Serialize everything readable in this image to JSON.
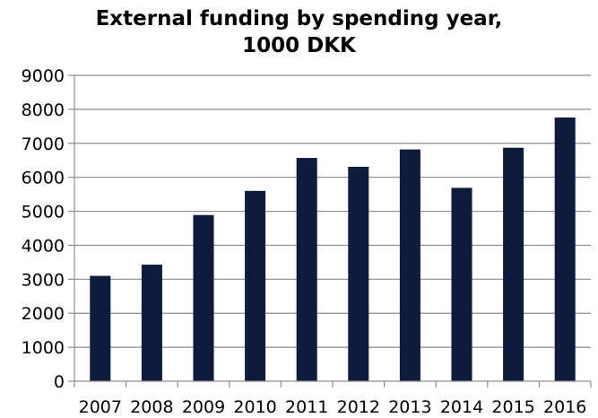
{
  "chart_data": {
    "type": "bar",
    "title_line1": "External funding by spending year,",
    "title_line2": "1000 DKK",
    "xlabel": "",
    "ylabel": "",
    "categories": [
      "2007",
      "2008",
      "2009",
      "2010",
      "2011",
      "2012",
      "2013",
      "2014",
      "2015",
      "2016"
    ],
    "values": [
      3100,
      3430,
      4890,
      5600,
      6570,
      6310,
      6820,
      5690,
      6870,
      7760
    ],
    "ylim": [
      0,
      9000
    ],
    "yticks": [
      "0",
      "1000",
      "2000",
      "3000",
      "4000",
      "5000",
      "6000",
      "7000",
      "8000",
      "9000"
    ],
    "grid": true,
    "legend": "none",
    "bar_color": "#0f1a3d",
    "grid_color": "#8c8c8c",
    "axis_color": "#8c8c8c"
  }
}
